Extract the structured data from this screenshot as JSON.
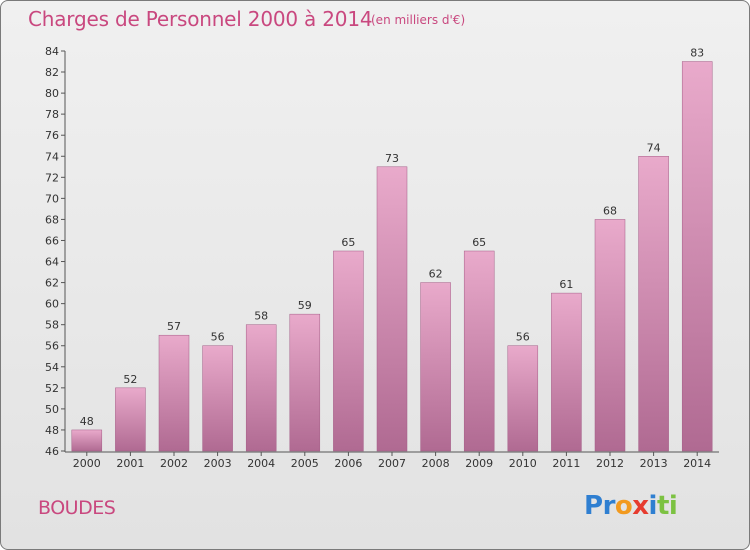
{
  "title": "Charges de Personnel 2000 à 2014",
  "subtitle": "(en milliers d'€)",
  "commune": "BOUDES",
  "logo": {
    "letters": [
      {
        "char": "P",
        "color": "#2f7fd1"
      },
      {
        "char": "r",
        "color": "#2f7fd1"
      },
      {
        "char": "o",
        "color": "#f29a1f"
      },
      {
        "char": "x",
        "color": "#e63b2e"
      },
      {
        "char": "i",
        "color": "#2f7fd1"
      },
      {
        "char": "t",
        "color": "#7cc242"
      },
      {
        "char": "i",
        "color": "#7cc242"
      }
    ]
  },
  "chart_data": {
    "type": "bar",
    "categories": [
      "2000",
      "2001",
      "2002",
      "2003",
      "2004",
      "2005",
      "2006",
      "2007",
      "2008",
      "2009",
      "2010",
      "2011",
      "2012",
      "2013",
      "2014"
    ],
    "values": [
      48,
      52,
      57,
      56,
      58,
      59,
      65,
      73,
      62,
      65,
      56,
      61,
      68,
      74,
      83
    ],
    "ylim": [
      46,
      84
    ],
    "yticks": [
      46,
      48,
      50,
      52,
      54,
      56,
      58,
      60,
      62,
      64,
      66,
      68,
      70,
      72,
      74,
      76,
      78,
      80,
      82,
      84
    ],
    "grid": false,
    "bar_color_top": "#e9aacb",
    "bar_color_bottom": "#b06a92"
  }
}
